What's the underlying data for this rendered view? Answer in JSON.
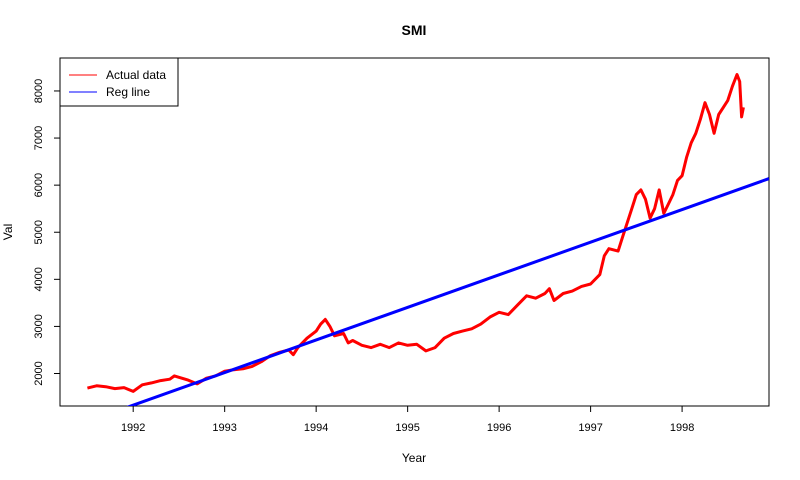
{
  "chart_data": {
    "type": "line",
    "title": "SMI",
    "xlabel": "Year",
    "ylabel": "Val",
    "xlim": [
      1991.2,
      1998.95
    ],
    "ylim": [
      1310,
      8700
    ],
    "x_ticks": [
      1992,
      1993,
      1994,
      1995,
      1996,
      1997,
      1998
    ],
    "y_ticks": [
      2000,
      3000,
      4000,
      5000,
      6000,
      7000,
      8000
    ],
    "grid": false,
    "legend_position": "top-left",
    "series": [
      {
        "name": "Actual data",
        "color": "#ff0000",
        "points": [
          [
            1991.5,
            1690
          ],
          [
            1991.6,
            1740
          ],
          [
            1991.7,
            1720
          ],
          [
            1991.8,
            1680
          ],
          [
            1991.9,
            1700
          ],
          [
            1992.0,
            1620
          ],
          [
            1992.1,
            1760
          ],
          [
            1992.2,
            1800
          ],
          [
            1992.3,
            1850
          ],
          [
            1992.4,
            1880
          ],
          [
            1992.45,
            1950
          ],
          [
            1992.5,
            1920
          ],
          [
            1992.6,
            1860
          ],
          [
            1992.7,
            1780
          ],
          [
            1992.8,
            1900
          ],
          [
            1992.9,
            1950
          ],
          [
            1993.0,
            2050
          ],
          [
            1993.1,
            2080
          ],
          [
            1993.2,
            2100
          ],
          [
            1993.3,
            2150
          ],
          [
            1993.4,
            2250
          ],
          [
            1993.5,
            2380
          ],
          [
            1993.6,
            2450
          ],
          [
            1993.7,
            2500
          ],
          [
            1993.75,
            2400
          ],
          [
            1993.8,
            2550
          ],
          [
            1993.9,
            2750
          ],
          [
            1994.0,
            2900
          ],
          [
            1994.05,
            3050
          ],
          [
            1994.1,
            3150
          ],
          [
            1994.15,
            3000
          ],
          [
            1994.2,
            2800
          ],
          [
            1994.3,
            2850
          ],
          [
            1994.35,
            2650
          ],
          [
            1994.4,
            2700
          ],
          [
            1994.5,
            2600
          ],
          [
            1994.6,
            2550
          ],
          [
            1994.7,
            2620
          ],
          [
            1994.8,
            2550
          ],
          [
            1994.9,
            2650
          ],
          [
            1995.0,
            2600
          ],
          [
            1995.1,
            2620
          ],
          [
            1995.2,
            2480
          ],
          [
            1995.3,
            2550
          ],
          [
            1995.4,
            2750
          ],
          [
            1995.5,
            2850
          ],
          [
            1995.6,
            2900
          ],
          [
            1995.7,
            2950
          ],
          [
            1995.8,
            3050
          ],
          [
            1995.9,
            3200
          ],
          [
            1996.0,
            3300
          ],
          [
            1996.1,
            3250
          ],
          [
            1996.2,
            3450
          ],
          [
            1996.3,
            3650
          ],
          [
            1996.4,
            3600
          ],
          [
            1996.5,
            3700
          ],
          [
            1996.55,
            3800
          ],
          [
            1996.6,
            3550
          ],
          [
            1996.7,
            3700
          ],
          [
            1996.8,
            3750
          ],
          [
            1996.9,
            3850
          ],
          [
            1997.0,
            3900
          ],
          [
            1997.1,
            4100
          ],
          [
            1997.15,
            4500
          ],
          [
            1997.2,
            4650
          ],
          [
            1997.3,
            4600
          ],
          [
            1997.35,
            4900
          ],
          [
            1997.4,
            5200
          ],
          [
            1997.45,
            5500
          ],
          [
            1997.5,
            5800
          ],
          [
            1997.55,
            5900
          ],
          [
            1997.6,
            5700
          ],
          [
            1997.65,
            5300
          ],
          [
            1997.7,
            5500
          ],
          [
            1997.75,
            5900
          ],
          [
            1997.8,
            5400
          ],
          [
            1997.85,
            5600
          ],
          [
            1997.9,
            5800
          ],
          [
            1997.95,
            6100
          ],
          [
            1998.0,
            6200
          ],
          [
            1998.05,
            6600
          ],
          [
            1998.1,
            6900
          ],
          [
            1998.15,
            7100
          ],
          [
            1998.2,
            7400
          ],
          [
            1998.25,
            7750
          ],
          [
            1998.3,
            7500
          ],
          [
            1998.35,
            7100
          ],
          [
            1998.4,
            7500
          ],
          [
            1998.45,
            7650
          ],
          [
            1998.5,
            7800
          ],
          [
            1998.55,
            8100
          ],
          [
            1998.6,
            8350
          ],
          [
            1998.63,
            8200
          ],
          [
            1998.65,
            7450
          ],
          [
            1998.67,
            7650
          ]
        ]
      },
      {
        "name": "Reg line",
        "color": "#0000ff",
        "points": [
          [
            1991.5,
            980
          ],
          [
            1998.95,
            6140
          ]
        ]
      }
    ]
  }
}
